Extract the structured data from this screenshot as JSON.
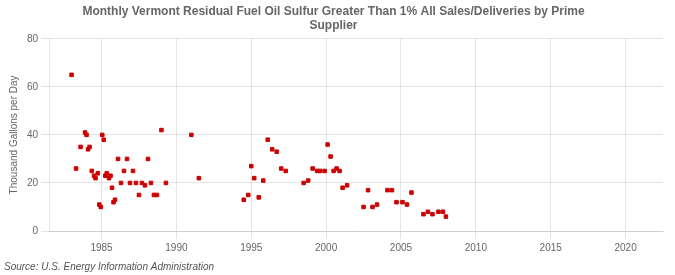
{
  "chart_data": {
    "type": "scatter",
    "title": "Monthly Vermont Residual Fuel Oil Sulfur Greater Than 1% All Sales/Deliveries by Prime\nSupplier",
    "ylabel": "Thousand Gallons per Day",
    "annotations": [
      "Source: U.S. Energy Information Administration"
    ],
    "color": "#cc0000",
    "marker": "square",
    "grid": true,
    "xlim": [
      1981.5,
      2022.5
    ],
    "ylim": [
      0,
      80
    ],
    "xticks": [
      1985,
      1990,
      1995,
      2000,
      2005,
      2010,
      2015,
      2020
    ],
    "yticks": [
      0,
      20,
      40,
      60,
      80
    ],
    "x": [
      1983.0,
      1983.3,
      1983.6,
      1983.9,
      1984.0,
      1984.1,
      1984.2,
      1984.35,
      1984.5,
      1984.6,
      1984.75,
      1984.85,
      1984.95,
      1985.05,
      1985.15,
      1985.25,
      1985.35,
      1985.5,
      1985.6,
      1985.7,
      1985.8,
      1985.9,
      1986.1,
      1986.3,
      1986.5,
      1986.7,
      1986.9,
      1987.1,
      1987.3,
      1987.5,
      1987.7,
      1987.9,
      1988.1,
      1988.3,
      1988.5,
      1988.7,
      1989.0,
      1989.3,
      1991.0,
      1991.5,
      1994.5,
      1994.8,
      1995.0,
      1995.2,
      1995.5,
      1995.8,
      1996.1,
      1996.4,
      1996.7,
      1997.0,
      1997.3,
      1998.5,
      1998.8,
      1999.1,
      1999.4,
      1999.6,
      1999.9,
      2000.1,
      2000.3,
      2000.5,
      2000.7,
      2000.9,
      2001.1,
      2001.4,
      2002.5,
      2002.8,
      2003.1,
      2003.4,
      2004.1,
      2004.4,
      2004.7,
      2005.1,
      2005.4,
      2005.7,
      2006.5,
      2006.8,
      2007.1,
      2007.5,
      2007.8,
      2008.0
    ],
    "values": [
      65,
      26,
      35,
      41,
      40,
      34,
      35,
      25,
      23,
      22,
      24,
      11,
      10,
      40,
      38,
      23,
      24,
      22,
      23,
      18,
      12,
      13,
      30,
      20,
      25,
      30,
      20,
      25,
      20,
      15,
      20,
      19,
      30,
      20,
      15,
      15,
      42,
      20,
      40,
      22,
      13,
      15,
      27,
      22,
      14,
      21,
      38,
      34,
      33,
      26,
      25,
      20,
      21,
      26,
      25,
      25,
      25,
      36,
      31,
      25,
      26,
      25,
      18,
      19,
      10,
      17,
      10,
      11,
      17,
      17,
      12,
      12,
      11,
      16,
      7,
      8,
      7,
      8,
      8,
      6
    ]
  }
}
